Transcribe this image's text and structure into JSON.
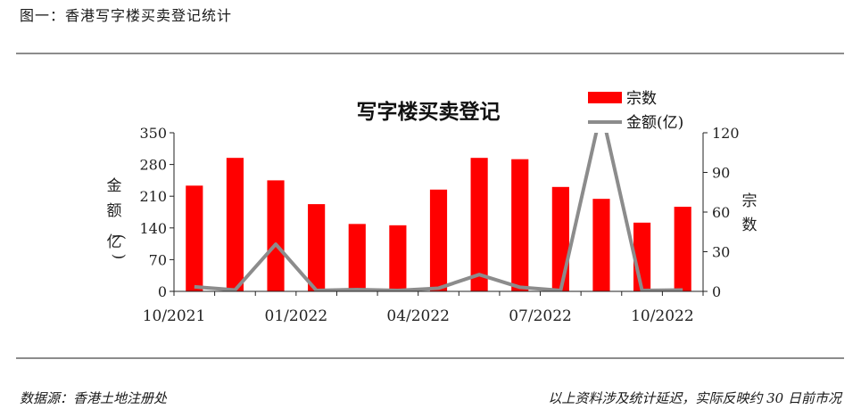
{
  "figure_title": "图一：香港写字楼买卖登记统计",
  "source_note": "数据源：香港土地注册处",
  "disclaimer": "以上资料涉及统计延迟，实际反映约 30 日前市况",
  "colors": {
    "bars": "#ff0000",
    "line": "#8c8c8c",
    "rule": "#8c8c8c"
  },
  "chart_data": {
    "type": "bar+line",
    "title": "写字楼买卖登记",
    "categories": [
      "10/2021",
      "11/2021",
      "12/2021",
      "01/2022",
      "02/2022",
      "03/2022",
      "04/2022",
      "05/2022",
      "06/2022",
      "07/2022",
      "08/2022",
      "09/2022",
      "10/2022"
    ],
    "x_tick_labels": [
      "10/2021",
      "01/2022",
      "04/2022",
      "07/2022",
      "10/2022"
    ],
    "series": [
      {
        "name": "宗数",
        "type": "bar",
        "axis": "right",
        "values": [
          80,
          101,
          84,
          66,
          51,
          50,
          77,
          101,
          100,
          79,
          70,
          52,
          64
        ]
      },
      {
        "name": "金额(亿)",
        "type": "line",
        "axis": "left",
        "values": [
          10,
          3,
          104,
          2,
          4,
          2,
          7,
          37,
          9,
          2,
          400,
          2,
          3
        ]
      }
    ],
    "left_axis": {
      "label": "金额(亿)",
      "range": [
        0,
        350
      ],
      "ticks": [
        0,
        70,
        140,
        210,
        280,
        350
      ]
    },
    "right_axis": {
      "label": "宗数",
      "range": [
        0,
        120
      ],
      "ticks": [
        0,
        30,
        60,
        90,
        120
      ]
    },
    "legend_position": "top-right",
    "grid": false
  }
}
